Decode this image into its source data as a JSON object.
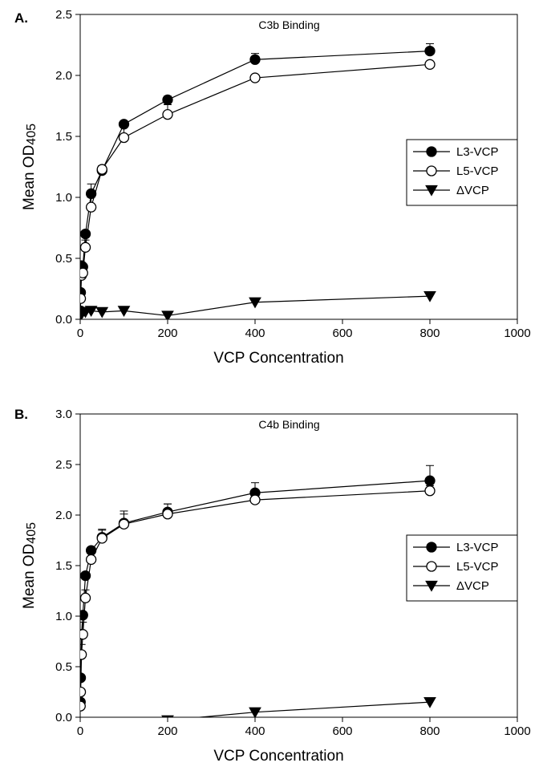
{
  "chart_data": [
    {
      "panel_label": "A.",
      "type": "line",
      "title": "C3b Binding",
      "xlabel": "VCP Concentration",
      "ylabel_main": "Mean OD",
      "ylabel_sub": "405",
      "xlim": [
        0,
        1000
      ],
      "ylim": [
        0,
        2.5
      ],
      "xticks": [
        "0",
        "200",
        "400",
        "600",
        "800",
        "1000"
      ],
      "yticks": [
        "0.0",
        "0.5",
        "1.0",
        "1.5",
        "2.0",
        "2.5"
      ],
      "legend_position": "right-middle",
      "grid": false,
      "x": [
        0.5,
        1,
        3,
        6,
        12,
        25,
        50,
        100,
        200,
        400,
        800
      ],
      "series": [
        {
          "name": "L3-VCP",
          "marker": "filled-circle",
          "values": [
            0.07,
            0.22,
            0.44,
            0.43,
            0.7,
            1.03,
            1.22,
            1.6,
            1.8,
            2.13,
            2.2
          ],
          "errors": [
            0,
            0,
            0,
            0,
            0,
            0.08,
            0,
            0,
            0.03,
            0.05,
            0.06
          ]
        },
        {
          "name": "L5-VCP",
          "marker": "open-circle",
          "values": [
            0.06,
            0.17,
            0.36,
            0.38,
            0.59,
            0.92,
            1.23,
            1.49,
            1.68,
            1.98,
            2.09
          ],
          "errors": [
            0,
            0,
            0,
            0,
            0.06,
            0.08,
            0.03,
            0.1,
            0.08,
            0,
            0
          ]
        },
        {
          "name": "ΔVCP",
          "marker": "filled-triangle-down",
          "values": [
            0.03,
            0.03,
            0.05,
            0.06,
            0.06,
            0.07,
            0.06,
            0.07,
            0.03,
            0.14,
            0.19
          ],
          "errors": [
            0,
            0,
            0,
            0,
            0,
            0,
            0,
            0,
            0,
            0,
            0
          ]
        }
      ]
    },
    {
      "panel_label": "B.",
      "type": "line",
      "title": "C4b Binding",
      "xlabel": "VCP Concentration",
      "ylabel_main": "Mean OD",
      "ylabel_sub": "405",
      "xlim": [
        0,
        1000
      ],
      "ylim": [
        0,
        3.0
      ],
      "xticks": [
        "0",
        "200",
        "400",
        "600",
        "800",
        "1000"
      ],
      "yticks": [
        "0.0",
        "0.5",
        "1.0",
        "1.5",
        "2.0",
        "2.5",
        "3.0"
      ],
      "legend_position": "right-middle",
      "grid": false,
      "x": [
        0.5,
        1,
        3,
        6,
        12,
        25,
        50,
        100,
        200,
        400,
        800
      ],
      "series": [
        {
          "name": "L3-VCP",
          "marker": "filled-circle",
          "values": [
            0.15,
            0.39,
            0.82,
            1.01,
            1.4,
            1.65,
            1.78,
            1.92,
            2.03,
            2.22,
            2.34
          ],
          "errors": [
            0,
            0,
            0,
            0,
            0,
            0,
            0.08,
            0.12,
            0.08,
            0.1,
            0.15
          ]
        },
        {
          "name": "L5-VCP",
          "marker": "open-circle",
          "values": [
            0.11,
            0.25,
            0.62,
            0.82,
            1.18,
            1.56,
            1.77,
            1.91,
            2.01,
            2.15,
            2.24
          ],
          "errors": [
            0,
            0,
            0.1,
            0.12,
            0.08,
            0.06,
            0.08,
            0.1,
            0.1,
            0.06,
            0.05
          ]
        },
        {
          "name": "ΔVCP",
          "marker": "filled-triangle-down",
          "values": [
            -0.05,
            -0.05,
            -0.05,
            -0.05,
            -0.05,
            -0.05,
            -0.05,
            -0.05,
            -0.03,
            0.05,
            0.15
          ],
          "errors": [
            0,
            0,
            0,
            0,
            0,
            0,
            0,
            0,
            0,
            0,
            0
          ]
        }
      ]
    }
  ]
}
